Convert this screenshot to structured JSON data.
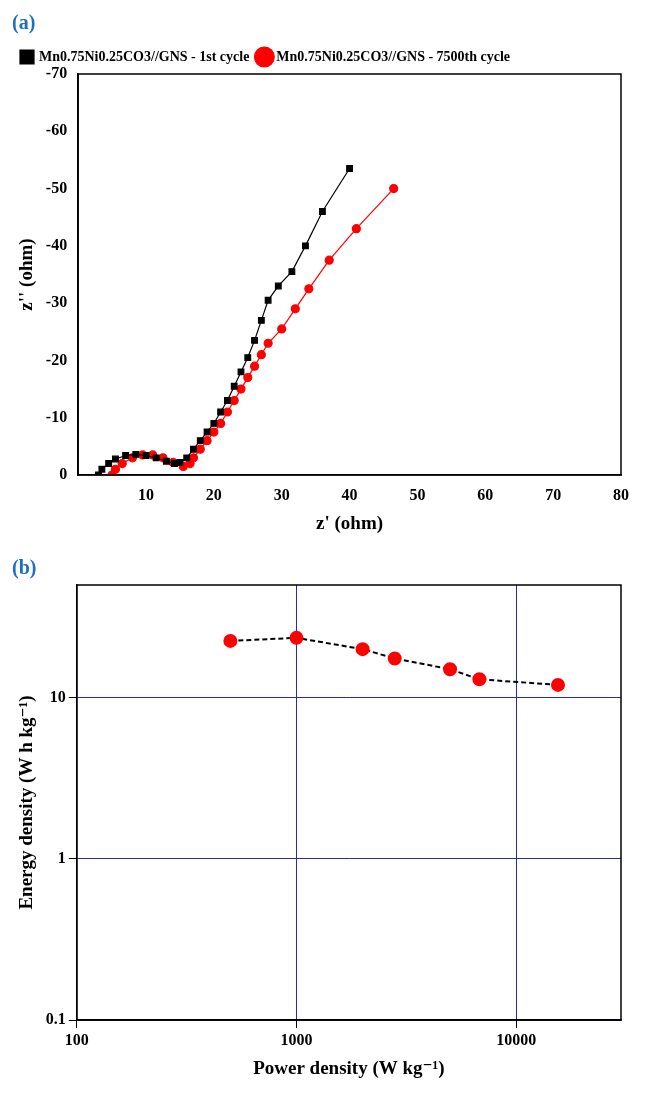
{
  "chart_data": [
    {
      "type": "line",
      "title": "(a)",
      "x_label": "z' (ohm)",
      "y_label": "z'' (ohm)",
      "xlim": [
        0,
        80
      ],
      "xticks": [
        10,
        20,
        30,
        40,
        50,
        60,
        70,
        80
      ],
      "ylim": [
        0,
        -70
      ],
      "yticks": [
        0,
        -10,
        -20,
        -30,
        -40,
        -50,
        -60,
        -70
      ],
      "legend": "top",
      "grid": false,
      "series": [
        {
          "name": "Mn0.75Ni0.25CO3//GNS - 1st cycle",
          "color": "#000000",
          "marker": "square",
          "x": [
            3,
            3.5,
            4.5,
            5.5,
            7,
            8.5,
            10,
            11.5,
            13,
            14.2,
            15,
            16,
            17,
            18,
            19,
            20,
            21,
            22,
            23,
            24,
            25,
            26,
            27,
            28,
            29.5,
            31.5,
            33.5,
            36,
            40
          ],
          "values": [
            0,
            -1,
            -2,
            -2.8,
            -3.4,
            -3.6,
            -3.4,
            -3,
            -2.4,
            -2,
            -2.2,
            -3,
            -4.5,
            -6,
            -7.5,
            -9,
            -11,
            -13,
            -15.5,
            -18,
            -20.5,
            -23.5,
            -27,
            -30.5,
            -33,
            -35.5,
            -40,
            -46,
            -53.5
          ]
        },
        {
          "name": "Mn0.75Ni0.25CO3//GNS - 7500th cycle",
          "color": "#ff0000",
          "marker": "circle",
          "x": [
            5,
            5.5,
            6.5,
            8,
            9.5,
            11,
            12.5,
            14,
            15.5,
            16.5,
            17,
            18,
            19,
            20,
            21,
            22,
            23,
            24,
            25,
            26,
            27,
            28,
            30,
            32,
            34,
            37,
            41,
            46.5
          ],
          "values": [
            0,
            -1,
            -2,
            -3,
            -3.5,
            -3.5,
            -3,
            -2.2,
            -1.5,
            -2,
            -3,
            -4.5,
            -6,
            -7.5,
            -9,
            -11,
            -13,
            -15,
            -17,
            -19,
            -21,
            -23,
            -25.5,
            -29,
            -32.5,
            -37.5,
            -43,
            -50
          ]
        }
      ]
    },
    {
      "type": "line",
      "title": "(b)",
      "log": true,
      "grid": true,
      "x_label": "Power density (W kg⁻¹)",
      "y_label": "Energy density (W h kg⁻¹)",
      "xlim": [
        100,
        30000
      ],
      "xticks": [
        100,
        1000,
        10000
      ],
      "ylim": [
        0.1,
        50
      ],
      "yticks": [
        0.1,
        1,
        10
      ],
      "series": [
        {
          "color": "#ff0000",
          "marker": "circle",
          "x": [
            500,
            1000,
            2000,
            2800,
            5000,
            6800,
            15500
          ],
          "values": [
            22.5,
            23.5,
            20,
            17.5,
            15,
            13,
            12
          ]
        }
      ]
    }
  ]
}
